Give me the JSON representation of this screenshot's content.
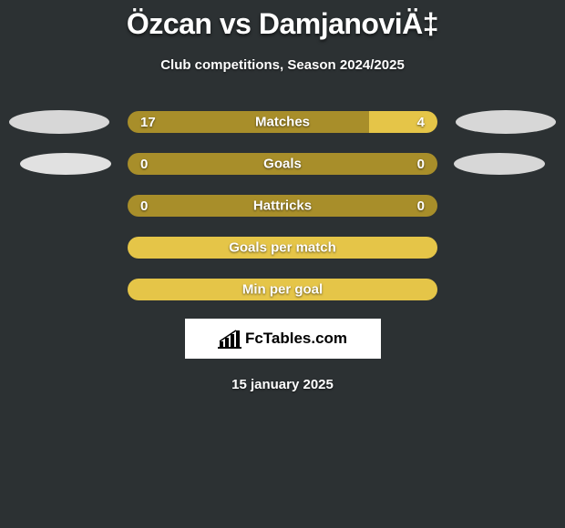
{
  "title": "Özcan vs DamjanoviÄ‡",
  "subtitle": "Club competitions, Season 2024/2025",
  "background_color": "#2c3133",
  "ellipse_colors": {
    "row0_left": "#d7d7d7",
    "row0_right": "#d7d7d7",
    "row1_left": "#e1e1e1",
    "row1_right": "#d7d7d7"
  },
  "stats": [
    {
      "label": "Matches",
      "left_value": "17",
      "right_value": "4",
      "left_width_pct": 78,
      "left_color": "#a88e2a",
      "right_color": "#e5c548",
      "show_ellipses": true,
      "ellipse_large": true
    },
    {
      "label": "Goals",
      "left_value": "0",
      "right_value": "0",
      "left_width_pct": 50,
      "left_color": "#a88e2a",
      "right_color": "#a88e2a",
      "show_ellipses": true,
      "ellipse_large": false
    },
    {
      "label": "Hattricks",
      "left_value": "0",
      "right_value": "0",
      "left_width_pct": 50,
      "left_color": "#a88e2a",
      "right_color": "#a88e2a",
      "show_ellipses": false
    },
    {
      "label": "Goals per match",
      "left_value": "",
      "right_value": "",
      "left_width_pct": 100,
      "left_color": "#e5c548",
      "right_color": "#e5c548",
      "show_ellipses": false
    },
    {
      "label": "Min per goal",
      "left_value": "",
      "right_value": "",
      "left_width_pct": 100,
      "left_color": "#e5c548",
      "right_color": "#e5c548",
      "show_ellipses": false
    }
  ],
  "logo": {
    "text": "FcTables.com",
    "icon_color": "#000000"
  },
  "date": "15 january 2025"
}
